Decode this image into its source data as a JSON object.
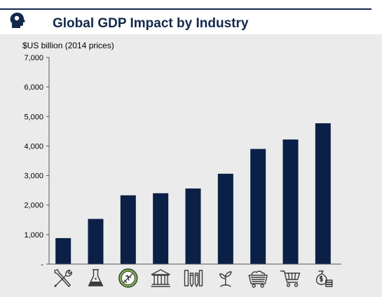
{
  "header": {
    "title": "Global GDP Impact by Industry",
    "logo_icon": "silhouette-head-icon",
    "accent_color": "#13294b"
  },
  "chart_data": {
    "type": "bar",
    "title": "Global GDP Impact by Industry",
    "ylabel": "$US billion (2014 prices)",
    "xlabel": "",
    "ylim": [
      0,
      7000
    ],
    "yticks": [
      0,
      1000,
      2000,
      3000,
      4000,
      5000,
      6000,
      7000
    ],
    "ytick_labels": [
      "-",
      "1,000",
      "2,000",
      "3,000",
      "4,000",
      "5,000",
      "6,000",
      "7,000"
    ],
    "categories": [
      "wrench-screwdriver-icon",
      "flask-icon",
      "airplane-badge-icon",
      "bank-building-icon",
      "pencils-ruler-icon",
      "sprout-icon",
      "mine-cart-icon",
      "shopping-cart-icon",
      "money-bag-coins-icon"
    ],
    "values": [
      880,
      1530,
      2330,
      2400,
      2560,
      3060,
      3900,
      4220,
      4770
    ],
    "bar_color": "#0b2046",
    "grid": false
  }
}
